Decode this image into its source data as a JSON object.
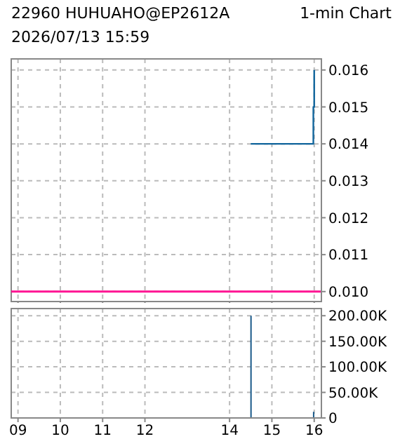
{
  "chart_data": [
    {
      "type": "step",
      "title": "22960 HUHUAHO@EP2612A",
      "annotations": [
        "1-min Chart",
        "2026/07/13 15:59"
      ],
      "series": [
        {
          "color": "#11659c",
          "x": [
            14.5,
            15.97,
            15.98,
            16.0
          ],
          "values": [
            0.014,
            0.014,
            0.015,
            0.016
          ]
        }
      ],
      "xlim": [
        8.84,
        16.17
      ],
      "xticks": [
        9,
        10,
        11,
        12,
        14,
        15,
        16
      ],
      "ylim": [
        0.00973,
        0.0163
      ],
      "yticks": [
        {
          "value": 0.01,
          "label": "0.010"
        },
        0.011,
        0.012,
        0.013,
        0.014,
        0.015,
        0.016
      ],
      "ref_lines": [
        {
          "axis": "y",
          "value": 0.01,
          "color": "#ff1493"
        }
      ],
      "grid": true,
      "tick_labels": "y"
    },
    {
      "type": "bar",
      "series": [
        {
          "color": "#1a5a8a",
          "x": [
            14.5,
            15.98
          ],
          "values": [
            200000,
            12000
          ]
        }
      ],
      "xlim": [
        8.84,
        16.17
      ],
      "xticks": [
        {
          "value": 9,
          "label": "09"
        },
        10,
        11,
        12,
        14,
        15,
        16
      ],
      "ylim": [
        0,
        214000
      ],
      "yticks": [
        0,
        {
          "value": 50000,
          "label": "50.00K"
        },
        {
          "value": 100000,
          "label": "100.00K"
        },
        {
          "value": 150000,
          "label": "150.00K"
        },
        {
          "value": 200000,
          "label": "200.00K"
        }
      ],
      "grid": true
    }
  ]
}
